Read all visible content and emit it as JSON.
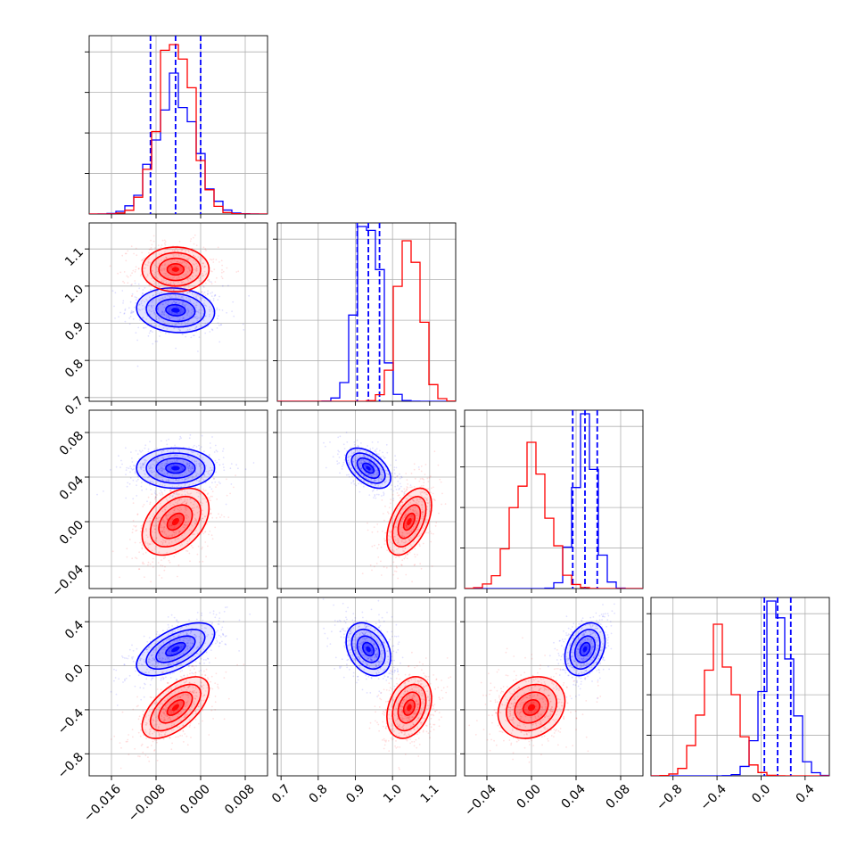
{
  "colors": {
    "series_a": "#0000ff",
    "series_b": "#ff0000",
    "grid": "#b0b0b0"
  },
  "chart_data": {
    "type": "corner",
    "grid": true,
    "legend": "none",
    "title": "",
    "parameters": [
      {
        "range": [
          -0.02,
          0.012
        ],
        "ticks": [
          -0.016,
          -0.008,
          0.0,
          0.008
        ],
        "tick_labels": [
          "−0.016",
          "−0.008",
          "0.000",
          "0.008"
        ]
      },
      {
        "range": [
          0.69,
          1.17
        ],
        "ticks": [
          0.7,
          0.8,
          0.9,
          1.0,
          1.1
        ],
        "tick_labels": [
          "0.7",
          "0.8",
          "0.9",
          "1.0",
          "1.1"
        ]
      },
      {
        "range": [
          -0.06,
          0.1
        ],
        "ticks": [
          -0.04,
          0.0,
          0.04,
          0.08
        ],
        "tick_labels": [
          "−0.04",
          "0.00",
          "0.04",
          "0.08"
        ]
      },
      {
        "range": [
          -1.0,
          0.62
        ],
        "ticks": [
          -0.8,
          -0.4,
          0.0,
          0.4
        ],
        "tick_labels": [
          "−0.8",
          "−0.4",
          "0.0",
          "0.4"
        ]
      }
    ],
    "series": [
      {
        "color": "#0000ff",
        "means": [
          -0.0045,
          0.935,
          0.048,
          0.15
        ],
        "sigmas": [
          0.0035,
          0.03,
          0.009,
          0.12
        ],
        "correlations": [
          [
            0,
            1,
            -0.1
          ],
          [
            0,
            2,
            0.0
          ],
          [
            0,
            3,
            0.6
          ],
          [
            1,
            2,
            -0.5
          ],
          [
            1,
            3,
            -0.3
          ],
          [
            2,
            3,
            0.3
          ]
        ],
        "quantiles": [
          [
            -0.009,
            -0.0045,
            0.0
          ],
          [
            0.905,
            0.935,
            0.965
          ],
          [
            0.037,
            0.048,
            0.059
          ],
          [
            0.03,
            0.15,
            0.27
          ]
        ],
        "hist_peak_fraction": [
          0.79,
          0.98,
          0.98,
          0.98
        ]
      },
      {
        "color": "#ff0000",
        "means": [
          -0.0045,
          1.045,
          0.0,
          -0.38
        ],
        "sigmas": [
          0.003,
          0.03,
          0.015,
          0.14
        ],
        "correlations": [
          [
            0,
            1,
            0.0
          ],
          [
            0,
            2,
            0.4
          ],
          [
            0,
            3,
            0.6
          ],
          [
            1,
            2,
            0.5
          ],
          [
            1,
            3,
            0.3
          ],
          [
            2,
            3,
            0.2
          ]
        ],
        "hist_peak_fraction": [
          0.95,
          0.9,
          0.82,
          0.85
        ]
      }
    ]
  }
}
